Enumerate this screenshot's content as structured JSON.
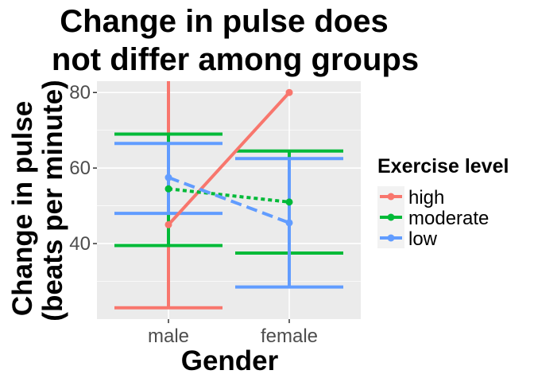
{
  "chart_data": {
    "type": "line",
    "title_lines": [
      "Change in pulse does",
      "not differ among groups"
    ],
    "xlabel": "Gender",
    "ylabel_lines": [
      "Change in pulse",
      "(beats per minute)"
    ],
    "categories": [
      "male",
      "female"
    ],
    "ylim": [
      20,
      83
    ],
    "yticks": [
      40,
      60,
      80
    ],
    "grid": true,
    "legend": {
      "title": "Exercise level",
      "placement": "right"
    },
    "series": [
      {
        "name": "high",
        "color": "#F8766D",
        "linetype": "solid",
        "values": [
          45,
          80
        ],
        "error_bars": [
          {
            "low": 23,
            "high": null
          },
          {
            "low": null,
            "high": null
          }
        ]
      },
      {
        "name": "moderate",
        "color": "#00BA38",
        "linetype": "dotted",
        "values": [
          54.5,
          51
        ],
        "error_bars": [
          {
            "low": 39.5,
            "high": 69
          },
          {
            "low": 37.5,
            "high": 64.5
          }
        ]
      },
      {
        "name": "low",
        "color": "#619CFF",
        "linetype": "dashed",
        "values": [
          57.5,
          45.5
        ],
        "error_bars": [
          {
            "low": 48,
            "high": 66.5
          },
          {
            "low": 28.5,
            "high": 62.5
          }
        ]
      }
    ]
  }
}
